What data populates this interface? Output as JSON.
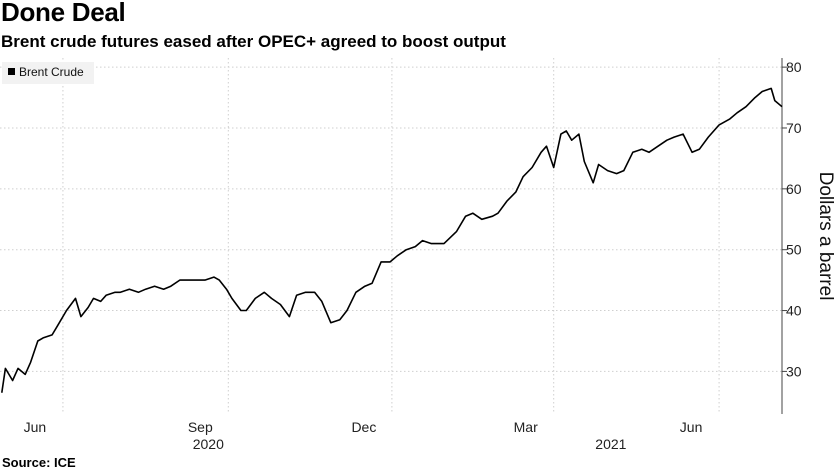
{
  "header": {
    "title": "Done Deal",
    "subtitle": "Brent crude futures eased after OPEC+ agreed to boost output"
  },
  "footer": {
    "source": "Source: ICE"
  },
  "chart_data": {
    "type": "line",
    "title": "Done Deal",
    "subtitle": "Brent crude futures eased after OPEC+ agreed to boost output",
    "xlabel": "",
    "ylabel": "Dollars a barrel",
    "x_tick_labels": [
      "Jun",
      "Sep",
      "Dec",
      "Mar",
      "Jun"
    ],
    "x_year_labels": [
      "2020",
      "2021"
    ],
    "y_ticks": [
      30,
      40,
      50,
      60,
      70,
      80
    ],
    "ylim": [
      23,
      81.5
    ],
    "xlim": [
      "2020-04-27",
      "2021-07-06"
    ],
    "y_axis_side": "right",
    "grid": "dotted",
    "legend": {
      "placement": "top-left",
      "entries": [
        "Brent Crude"
      ]
    },
    "series": [
      {
        "name": "Brent Crude",
        "color": "#000000",
        "x": [
          "2020-04-28",
          "2020-04-30",
          "2020-05-04",
          "2020-05-07",
          "2020-05-11",
          "2020-05-14",
          "2020-05-18",
          "2020-05-21",
          "2020-05-26",
          "2020-05-29",
          "2020-06-03",
          "2020-06-08",
          "2020-06-11",
          "2020-06-15",
          "2020-06-18",
          "2020-06-22",
          "2020-06-25",
          "2020-06-30",
          "2020-07-03",
          "2020-07-08",
          "2020-07-13",
          "2020-07-17",
          "2020-07-22",
          "2020-07-27",
          "2020-07-31",
          "2020-08-05",
          "2020-08-10",
          "2020-08-14",
          "2020-08-19",
          "2020-08-24",
          "2020-08-27",
          "2020-08-31",
          "2020-09-03",
          "2020-09-08",
          "2020-09-11",
          "2020-09-16",
          "2020-09-21",
          "2020-09-25",
          "2020-09-30",
          "2020-10-05",
          "2020-10-09",
          "2020-10-14",
          "2020-10-19",
          "2020-10-23",
          "2020-10-28",
          "2020-11-02",
          "2020-11-06",
          "2020-11-11",
          "2020-11-16",
          "2020-11-20",
          "2020-11-25",
          "2020-11-30",
          "2020-12-04",
          "2020-12-09",
          "2020-12-14",
          "2020-12-18",
          "2020-12-23",
          "2020-12-30",
          "2021-01-06",
          "2021-01-11",
          "2021-01-15",
          "2021-01-20",
          "2021-01-26",
          "2021-01-29",
          "2021-02-03",
          "2021-02-08",
          "2021-02-12",
          "2021-02-17",
          "2021-02-22",
          "2021-02-25",
          "2021-03-01",
          "2021-03-05",
          "2021-03-08",
          "2021-03-11",
          "2021-03-15",
          "2021-03-18",
          "2021-03-23",
          "2021-03-26",
          "2021-03-31",
          "2021-04-05",
          "2021-04-09",
          "2021-04-14",
          "2021-04-19",
          "2021-04-23",
          "2021-04-28",
          "2021-05-03",
          "2021-05-07",
          "2021-05-12",
          "2021-05-17",
          "2021-05-21",
          "2021-05-26",
          "2021-06-01",
          "2021-06-07",
          "2021-06-11",
          "2021-06-16",
          "2021-06-21",
          "2021-06-25",
          "2021-06-30",
          "2021-07-02",
          "2021-07-06"
        ],
        "y": [
          26.5,
          30.5,
          28.5,
          30.5,
          29.5,
          31.5,
          35,
          35.5,
          36,
          37.5,
          40,
          42,
          39,
          40.5,
          42,
          41.5,
          42.5,
          43,
          43,
          43.5,
          43,
          43.5,
          44,
          43.5,
          44,
          45,
          45,
          45,
          45,
          45.5,
          45,
          43.5,
          42,
          40,
          40,
          42,
          43,
          42,
          41,
          39,
          42.5,
          43,
          43,
          41.5,
          38,
          38.5,
          40,
          43,
          44,
          44.5,
          48,
          48,
          49,
          50,
          50.5,
          51.5,
          51,
          51,
          53,
          55.5,
          56,
          55,
          55.5,
          56,
          58,
          59.5,
          62,
          63.5,
          66,
          67,
          63.5,
          69,
          69.5,
          68,
          69,
          64.5,
          61,
          64,
          63,
          62.5,
          63,
          66,
          66.5,
          66,
          67,
          68,
          68.5,
          69,
          66,
          66.5,
          68.5,
          70.5,
          71.5,
          72.5,
          73.5,
          75,
          76,
          76.5,
          74.5,
          73.5
        ]
      }
    ]
  }
}
